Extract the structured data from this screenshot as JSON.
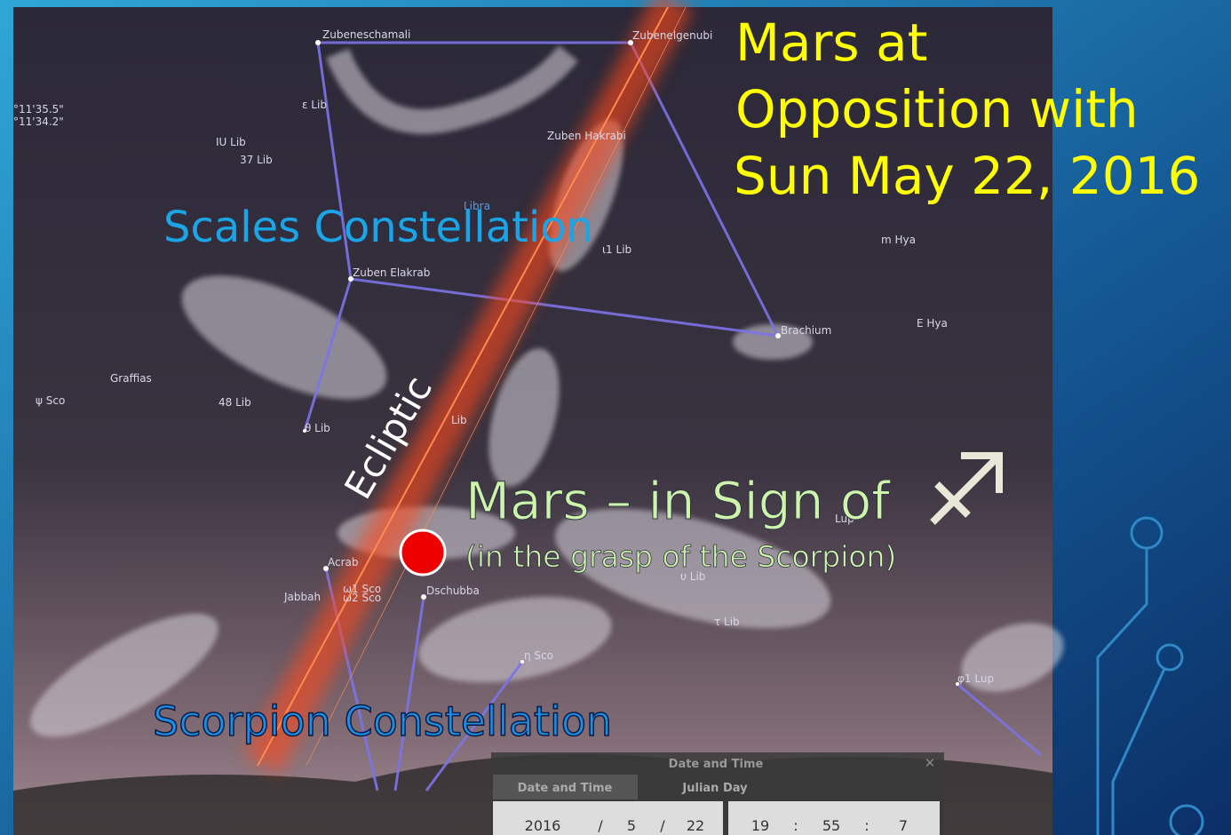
{
  "slide": {
    "title_lines": [
      "Mars at",
      "Opposition with",
      "Sun May 22, 2016"
    ],
    "scales_label": "Scales Constellation",
    "ecliptic_label": "Ecliptic",
    "mars_label": "Mars – in Sign of",
    "mars_sublabel": "(in the grasp of the Scorpion)",
    "scorpion_label": "Scorpion Constellation"
  },
  "sky": {
    "coordinates": [
      "°11'35.5\"",
      "°11'34.2\""
    ],
    "stars": [
      "Zubeneschamali",
      "Zubenelgenubi",
      "ε Lib",
      "IU Lib",
      "37 Lib",
      "Zuben Hakrabi",
      "Libra",
      "ι1 Lib",
      "Zuben Elakrab",
      "Brachium",
      "m Hya",
      "E Hya",
      "Graffias",
      "ψ Sco",
      "48 Lib",
      "θ Lib",
      "Lib",
      "Lup",
      "Acrab",
      "Jabbah",
      "ω1 Sco",
      "ω2 Sco",
      "Dschubba",
      "υ Lib",
      "τ Lib",
      "η Sco",
      "φ1 Lup"
    ]
  },
  "dialog": {
    "title": "Date and Time",
    "tabs": [
      "Date and Time",
      "Julian Day"
    ],
    "date": [
      "2016",
      "5",
      "22"
    ],
    "time": [
      "19",
      "55",
      "7"
    ],
    "date_separator": "/",
    "time_separator": ":"
  }
}
